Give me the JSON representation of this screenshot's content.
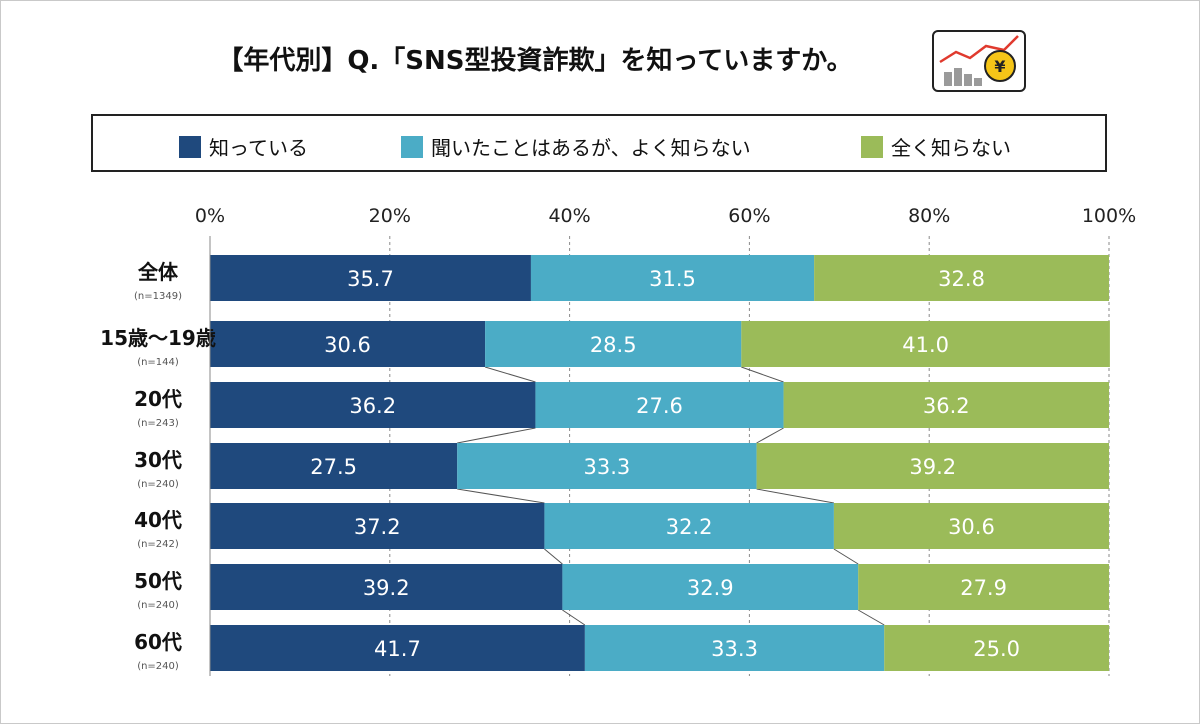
{
  "title": "【年代別】Q.「SNS型投資詐欺」を知っていますか。",
  "legend": [
    {
      "label": "知っている",
      "color": "#1f497d"
    },
    {
      "label": "聞いたことはあるが、よく知らない",
      "color": "#4bacc6"
    },
    {
      "label": "全く知らない",
      "color": "#9bbb59"
    }
  ],
  "chart_data": {
    "type": "bar",
    "orientation": "horizontal",
    "stacked": true,
    "stacking": "percent",
    "categories": [
      "全体",
      "15歳〜19歳",
      "20代",
      "30代",
      "40代",
      "50代",
      "60代"
    ],
    "category_notes": [
      "(n=1349)",
      "(n=144)",
      "(n=243)",
      "(n=240)",
      "(n=242)",
      "(n=240)",
      "(n=240)"
    ],
    "series": [
      {
        "name": "知っている",
        "color": "#1f497d",
        "values": [
          35.7,
          30.6,
          36.2,
          27.5,
          37.2,
          39.2,
          41.7
        ]
      },
      {
        "name": "聞いたことはあるが、よく知らない",
        "color": "#4bacc6",
        "values": [
          31.5,
          28.5,
          27.6,
          33.3,
          32.2,
          32.9,
          33.3
        ]
      },
      {
        "name": "全く知らない",
        "color": "#9bbb59",
        "values": [
          32.8,
          41.0,
          36.2,
          39.2,
          30.6,
          27.9,
          25.0
        ]
      }
    ],
    "xlim": [
      0,
      100
    ],
    "xticks": [
      "0%",
      "20%",
      "40%",
      "60%",
      "80%",
      "100%"
    ],
    "grid": "vertical dashed",
    "connector_lines": true,
    "legend_position": "top"
  }
}
